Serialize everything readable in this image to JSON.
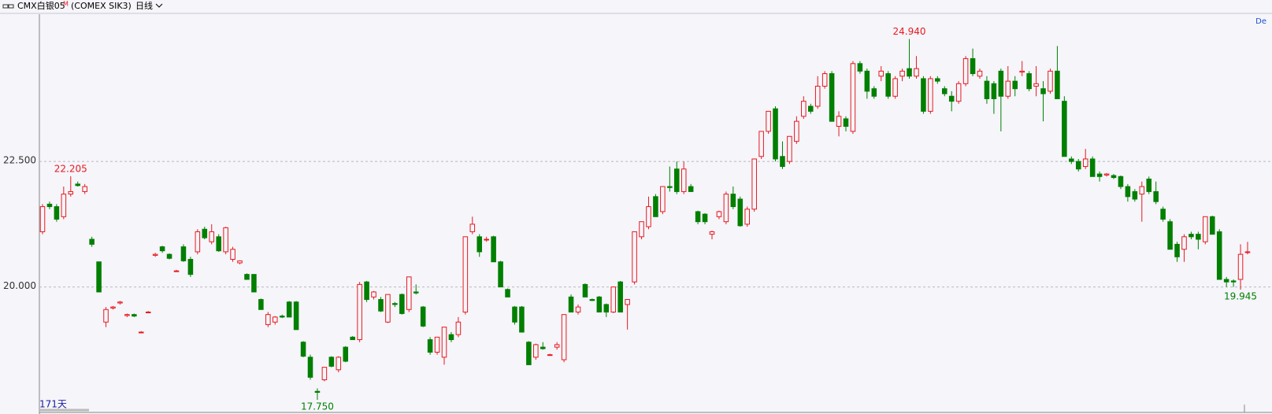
{
  "chart_data": {
    "type": "candlestick",
    "symbol": "CMX白银05",
    "symbol_mark": "M",
    "code": "(COMEX SIK3)",
    "period": "日线",
    "days": "171天",
    "corner_label": "De",
    "up_color": "#e8191f",
    "down_color": "#007f00",
    "grid": true,
    "ylim": [
      17.5,
      25.435
    ],
    "yticks": [
      {
        "value": 20,
        "label": "20.000"
      },
      {
        "value": 22.5,
        "label": "22.500"
      }
    ],
    "annotations": [
      {
        "value": 22.205,
        "label": "22.205"
      },
      {
        "value": 24.94,
        "label": "24.940"
      },
      {
        "value": 17.75,
        "label": "17.750"
      },
      {
        "value": 19.945,
        "label": "19.945"
      }
    ],
    "ohlc": [
      [
        21.1,
        21.65,
        21.05,
        21.6
      ],
      [
        21.65,
        21.7,
        21.55,
        21.6
      ],
      [
        21.6,
        21.65,
        21.3,
        21.35
      ],
      [
        21.4,
        22.0,
        21.35,
        21.85
      ],
      [
        21.85,
        22.205,
        21.8,
        21.9
      ],
      [
        22.05,
        22.1,
        22.0,
        22.02
      ],
      [
        21.9,
        22.05,
        21.85,
        22.0
      ],
      [
        20.95,
        21.0,
        20.8,
        20.85
      ],
      [
        20.5,
        20.5,
        19.9,
        19.9
      ],
      [
        19.3,
        19.6,
        19.2,
        19.55
      ],
      [
        19.58,
        19.62,
        19.55,
        19.6
      ],
      [
        19.68,
        19.72,
        19.65,
        19.7
      ],
      [
        19.43,
        19.47,
        19.4,
        19.45
      ],
      [
        19.45,
        19.47,
        19.4,
        19.42
      ],
      [
        19.1,
        19.12,
        19.08,
        19.1
      ],
      [
        19.5,
        19.52,
        19.48,
        19.5
      ],
      [
        20.63,
        20.68,
        20.6,
        20.65
      ],
      [
        20.8,
        20.82,
        20.68,
        20.72
      ],
      [
        20.65,
        20.67,
        20.55,
        20.57
      ],
      [
        20.32,
        20.34,
        20.3,
        20.32
      ],
      [
        20.8,
        20.85,
        20.5,
        20.52
      ],
      [
        20.55,
        20.6,
        20.2,
        20.25
      ],
      [
        20.7,
        21.15,
        20.65,
        21.1
      ],
      [
        21.15,
        21.2,
        20.95,
        20.98
      ],
      [
        20.9,
        21.25,
        20.85,
        21.1
      ],
      [
        21.0,
        21.05,
        20.7,
        20.72
      ],
      [
        20.7,
        21.2,
        20.65,
        21.18
      ],
      [
        20.55,
        20.8,
        20.5,
        20.75
      ],
      [
        20.48,
        20.53,
        20.45,
        20.52
      ],
      [
        20.25,
        20.27,
        20.15,
        20.15
      ],
      [
        20.25,
        20.25,
        19.9,
        19.9
      ],
      [
        19.75,
        19.77,
        19.55,
        19.55
      ],
      [
        19.25,
        19.5,
        19.2,
        19.45
      ],
      [
        19.3,
        19.42,
        19.25,
        19.4
      ],
      [
        19.42,
        19.45,
        19.38,
        19.4
      ],
      [
        19.7,
        19.72,
        19.4,
        19.4
      ],
      [
        19.7,
        19.72,
        19.15,
        19.15
      ],
      [
        18.9,
        18.92,
        18.6,
        18.62
      ],
      [
        18.6,
        18.65,
        18.15,
        18.2
      ],
      [
        17.92,
        17.98,
        17.75,
        17.9
      ],
      [
        18.15,
        18.4,
        18.12,
        18.4
      ],
      [
        18.6,
        18.62,
        18.4,
        18.42
      ],
      [
        18.35,
        18.62,
        18.3,
        18.6
      ],
      [
        18.8,
        18.82,
        18.5,
        18.52
      ],
      [
        19.0,
        19.02,
        18.95,
        18.95
      ],
      [
        18.95,
        20.1,
        18.9,
        20.05
      ],
      [
        20.1,
        20.12,
        19.7,
        19.75
      ],
      [
        19.8,
        19.92,
        19.75,
        19.9
      ],
      [
        19.75,
        19.8,
        19.5,
        19.52
      ],
      [
        19.3,
        19.85,
        19.28,
        19.85
      ],
      [
        19.67,
        19.7,
        19.6,
        19.65
      ],
      [
        19.85,
        19.87,
        19.45,
        19.47
      ],
      [
        19.55,
        20.2,
        19.5,
        20.2
      ],
      [
        19.9,
        20.05,
        19.85,
        19.88
      ],
      [
        19.6,
        19.62,
        19.2,
        19.22
      ],
      [
        18.95,
        19.0,
        18.65,
        18.7
      ],
      [
        18.7,
        19.0,
        18.65,
        19.0
      ],
      [
        18.6,
        19.2,
        18.45,
        19.2
      ],
      [
        19.05,
        19.1,
        18.9,
        18.95
      ],
      [
        19.05,
        19.4,
        19.0,
        19.3
      ],
      [
        19.5,
        21.0,
        19.45,
        21.0
      ],
      [
        21.1,
        21.4,
        21.05,
        21.25
      ],
      [
        21.0,
        21.05,
        20.6,
        20.7
      ],
      [
        20.95,
        21.0,
        20.9,
        20.95
      ],
      [
        21.0,
        21.02,
        20.5,
        20.5
      ],
      [
        20.5,
        20.52,
        20.0,
        20.0
      ],
      [
        19.95,
        19.97,
        19.8,
        19.8
      ],
      [
        19.6,
        19.62,
        19.25,
        19.3
      ],
      [
        19.6,
        19.62,
        19.1,
        19.1
      ],
      [
        18.9,
        18.92,
        18.45,
        18.45
      ],
      [
        18.6,
        18.87,
        18.55,
        18.85
      ],
      [
        18.8,
        18.9,
        18.75,
        18.77
      ],
      [
        18.65,
        18.67,
        18.63,
        18.65
      ],
      [
        18.8,
        18.9,
        18.75,
        18.85
      ],
      [
        18.55,
        19.45,
        18.5,
        19.45
      ],
      [
        19.8,
        19.85,
        19.5,
        19.5
      ],
      [
        19.5,
        19.65,
        19.45,
        19.6
      ],
      [
        20.05,
        20.07,
        19.8,
        19.8
      ],
      [
        19.75,
        19.77,
        19.72,
        19.73
      ],
      [
        19.8,
        19.82,
        19.5,
        19.5
      ],
      [
        19.65,
        19.67,
        19.4,
        19.5
      ],
      [
        19.5,
        20.0,
        19.48,
        20.0
      ],
      [
        20.1,
        20.12,
        19.5,
        19.5
      ],
      [
        19.65,
        19.75,
        19.15,
        19.75
      ],
      [
        20.1,
        21.1,
        20.05,
        21.1
      ],
      [
        21.0,
        21.3,
        20.95,
        21.3
      ],
      [
        21.2,
        21.8,
        21.15,
        21.6
      ],
      [
        21.8,
        21.85,
        21.4,
        21.4
      ],
      [
        21.5,
        22.0,
        21.45,
        22.0
      ],
      [
        22.0,
        22.4,
        21.9,
        21.98
      ],
      [
        22.35,
        22.5,
        21.85,
        21.9
      ],
      [
        21.9,
        22.5,
        21.85,
        22.35
      ],
      [
        22.0,
        22.05,
        21.9,
        21.9
      ],
      [
        21.5,
        21.52,
        21.25,
        21.3
      ],
      [
        21.45,
        21.47,
        21.25,
        21.3
      ],
      [
        21.05,
        21.12,
        20.95,
        21.1
      ],
      [
        21.4,
        21.52,
        21.35,
        21.5
      ],
      [
        21.3,
        21.9,
        21.25,
        21.85
      ],
      [
        21.85,
        22.0,
        21.55,
        21.6
      ],
      [
        21.75,
        21.8,
        21.2,
        21.22
      ],
      [
        21.25,
        21.6,
        21.2,
        21.55
      ],
      [
        21.55,
        22.55,
        21.5,
        22.55
      ],
      [
        22.6,
        23.1,
        22.55,
        23.1
      ],
      [
        23.1,
        23.5,
        23.05,
        23.5
      ],
      [
        23.55,
        23.6,
        22.5,
        22.55
      ],
      [
        22.6,
        22.9,
        22.35,
        22.4
      ],
      [
        22.5,
        23.0,
        22.45,
        23.0
      ],
      [
        22.9,
        23.4,
        22.85,
        23.3
      ],
      [
        23.4,
        23.8,
        23.35,
        23.7
      ],
      [
        23.6,
        23.65,
        23.45,
        23.5
      ],
      [
        23.6,
        24.2,
        23.55,
        24.0
      ],
      [
        24.0,
        24.3,
        23.95,
        24.25
      ],
      [
        24.25,
        24.3,
        23.3,
        23.3
      ],
      [
        23.2,
        23.5,
        23.0,
        23.4
      ],
      [
        23.35,
        23.4,
        23.1,
        23.2
      ],
      [
        23.1,
        24.5,
        23.05,
        24.45
      ],
      [
        24.45,
        24.5,
        24.25,
        24.3
      ],
      [
        24.3,
        24.35,
        23.75,
        23.9
      ],
      [
        23.95,
        24.0,
        23.75,
        23.8
      ],
      [
        24.2,
        24.4,
        24.1,
        24.3
      ],
      [
        24.25,
        24.3,
        23.75,
        23.8
      ],
      [
        23.8,
        24.2,
        23.75,
        24.15
      ],
      [
        24.2,
        24.35,
        24.1,
        24.3
      ],
      [
        24.35,
        24.94,
        24.15,
        24.2
      ],
      [
        24.2,
        24.6,
        24.15,
        24.35
      ],
      [
        24.15,
        24.2,
        23.45,
        23.5
      ],
      [
        23.5,
        24.2,
        23.45,
        24.15
      ],
      [
        24.15,
        24.2,
        24.05,
        24.1
      ],
      [
        23.95,
        24.0,
        23.8,
        23.85
      ],
      [
        23.8,
        23.9,
        23.5,
        23.7
      ],
      [
        23.7,
        24.1,
        23.65,
        24.05
      ],
      [
        24.05,
        24.6,
        24.0,
        24.55
      ],
      [
        24.55,
        24.75,
        24.2,
        24.25
      ],
      [
        24.2,
        24.35,
        24.15,
        24.3
      ],
      [
        24.1,
        24.2,
        23.65,
        23.75
      ],
      [
        24.05,
        24.1,
        23.45,
        23.75
      ],
      [
        24.3,
        24.35,
        23.1,
        23.8
      ],
      [
        23.8,
        24.4,
        23.75,
        24.1
      ],
      [
        24.1,
        24.2,
        23.8,
        23.95
      ],
      [
        24.28,
        24.5,
        24.2,
        24.3
      ],
      [
        24.25,
        24.3,
        23.9,
        23.95
      ],
      [
        24.0,
        24.4,
        23.8,
        24.05
      ],
      [
        23.95,
        24.1,
        23.3,
        23.85
      ],
      [
        23.9,
        24.35,
        23.85,
        24.3
      ],
      [
        24.3,
        24.8,
        23.75,
        23.75
      ],
      [
        23.7,
        23.8,
        22.6,
        22.6
      ],
      [
        22.55,
        22.6,
        22.45,
        22.5
      ],
      [
        22.5,
        22.55,
        22.3,
        22.35
      ],
      [
        22.4,
        22.75,
        22.35,
        22.55
      ],
      [
        22.55,
        22.6,
        22.2,
        22.2
      ],
      [
        22.25,
        22.3,
        22.1,
        22.2
      ],
      [
        22.23,
        22.27,
        22.2,
        22.25
      ],
      [
        22.22,
        22.25,
        22.15,
        22.18
      ],
      [
        22.2,
        22.22,
        21.95,
        22.0
      ],
      [
        22.0,
        22.05,
        21.7,
        21.8
      ],
      [
        21.9,
        21.95,
        21.7,
        21.75
      ],
      [
        21.85,
        22.1,
        21.3,
        22.0
      ],
      [
        22.15,
        22.2,
        21.85,
        21.9
      ],
      [
        21.9,
        22.1,
        21.65,
        21.7
      ],
      [
        21.55,
        21.6,
        21.3,
        21.35
      ],
      [
        21.3,
        21.35,
        20.75,
        20.75
      ],
      [
        20.85,
        20.9,
        20.5,
        20.6
      ],
      [
        20.75,
        21.05,
        20.5,
        21.0
      ],
      [
        21.05,
        21.1,
        20.95,
        21.0
      ],
      [
        21.05,
        21.1,
        20.75,
        20.95
      ],
      [
        20.9,
        21.4,
        20.85,
        21.4
      ],
      [
        21.4,
        21.42,
        21.05,
        21.05
      ],
      [
        21.1,
        21.15,
        20.15,
        20.15
      ],
      [
        20.15,
        20.2,
        20.0,
        20.1
      ],
      [
        20.12,
        20.15,
        20.0,
        20.1
      ],
      [
        20.15,
        20.85,
        19.945,
        20.65
      ],
      [
        20.7,
        20.9,
        20.65,
        20.7
      ]
    ]
  }
}
